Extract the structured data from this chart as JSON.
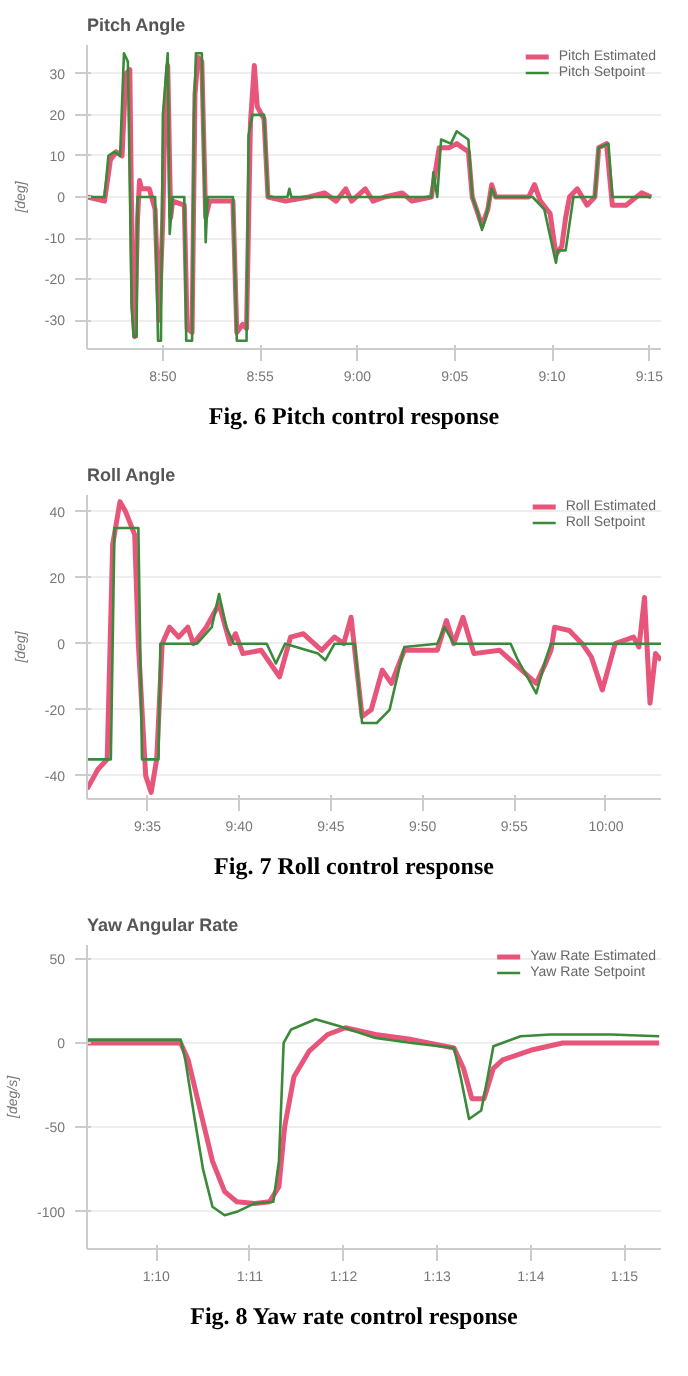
{
  "chart_data": [
    {
      "type": "line",
      "title": "Pitch Angle",
      "ylabel": "[deg]",
      "xlim": [
        526.1,
        555.6
      ],
      "ylim": [
        -37,
        37
      ],
      "xticks": [
        {
          "value": 530,
          "label": "8:50"
        },
        {
          "value": 535,
          "label": "8:55"
        },
        {
          "value": 540,
          "label": "9:00"
        },
        {
          "value": 545,
          "label": "9:05"
        },
        {
          "value": 550,
          "label": "9:10"
        },
        {
          "value": 555,
          "label": "9:15"
        }
      ],
      "yticks": [
        -30,
        -20,
        -10,
        0,
        10,
        20,
        30
      ],
      "grid": "y",
      "legend": "top right",
      "annotations": [
        "Fig. 6 Pitch control response"
      ],
      "series": [
        {
          "name": "Pitch Estimated",
          "color": "#e8557a",
          "x": [
            526.1,
            527.0,
            527.3,
            527.6,
            527.9,
            528.1,
            528.3,
            528.45,
            528.55,
            528.7,
            528.8,
            528.9,
            529.3,
            529.6,
            529.8,
            530.0,
            530.1,
            530.25,
            530.4,
            530.5,
            531.1,
            531.25,
            531.5,
            531.65,
            531.8,
            532.0,
            532.2,
            532.4,
            533.6,
            533.8,
            534.1,
            534.3,
            534.5,
            534.7,
            534.85,
            535.2,
            535.4,
            536.3,
            537.5,
            538.3,
            538.9,
            539.4,
            539.7,
            540.4,
            540.8,
            541.4,
            542.3,
            542.8,
            543.8,
            544.2,
            544.7,
            545.1,
            545.7,
            545.9,
            546.4,
            546.7,
            546.9,
            547.1,
            548.8,
            549.1,
            549.4,
            549.9,
            550.2,
            550.5,
            550.7,
            550.9,
            551.3,
            551.8,
            552.2,
            552.4,
            552.8,
            553.1,
            553.8,
            554.6,
            555.1
          ],
          "values": [
            0,
            -1,
            9,
            11,
            10,
            30,
            31,
            -26,
            -34,
            -5,
            4,
            2,
            2,
            -3,
            -30,
            -5,
            20,
            32,
            -5,
            -1,
            -2,
            -32,
            -33,
            25,
            34,
            33,
            -5,
            -1,
            -1,
            -33,
            -31,
            -32,
            18,
            32,
            22,
            19,
            0,
            -1,
            0,
            1,
            -1,
            2,
            -1,
            2,
            -1,
            0,
            1,
            -1,
            0,
            12,
            12,
            13,
            11,
            0,
            -7,
            -3,
            3,
            0,
            0,
            3,
            -1,
            -4,
            -14,
            -12,
            -5,
            0,
            2,
            -2,
            0,
            12,
            13,
            -2,
            -2,
            1,
            0
          ]
        },
        {
          "name": "Pitch Setpoint",
          "color": "#3a8a3a",
          "x": [
            526.1,
            527.0,
            527.2,
            527.5,
            527.8,
            528.0,
            528.2,
            528.4,
            528.5,
            528.65,
            528.7,
            529.6,
            529.75,
            529.9,
            530.0,
            530.25,
            530.35,
            530.5,
            531.1,
            531.2,
            531.5,
            531.6,
            531.7,
            532.0,
            532.2,
            532.3,
            533.6,
            533.8,
            534.3,
            534.4,
            534.6,
            535.2,
            535.4,
            536.4,
            536.5,
            536.6,
            543.8,
            543.9,
            544.1,
            544.3,
            544.8,
            545.1,
            545.7,
            545.9,
            546.2,
            546.4,
            546.6,
            546.9,
            547.1,
            549.0,
            549.6,
            550.2,
            550.3,
            550.7,
            551.1,
            552.2,
            552.4,
            552.9,
            553.1,
            555.1
          ],
          "values": [
            0,
            0,
            10,
            11,
            10,
            35,
            33,
            -27,
            -34,
            -34,
            0,
            0,
            -35,
            -35,
            20,
            35,
            -9,
            0,
            0,
            -35,
            -35,
            20,
            35,
            35,
            -11,
            0,
            0,
            -35,
            -35,
            15,
            20,
            20,
            0,
            0,
            2,
            0,
            0,
            6,
            0,
            14,
            13,
            16,
            14,
            0,
            -4,
            -8,
            -5,
            2,
            0,
            0,
            -3,
            -16,
            -13,
            -13,
            0,
            0,
            12,
            13,
            0,
            0
          ]
        }
      ]
    },
    {
      "type": "line",
      "title": "Roll Angle",
      "ylabel": "[deg]",
      "xlim": [
        571.7,
        603.0
      ],
      "ylim": [
        -47,
        45
      ],
      "xticks": [
        {
          "value": 575,
          "label": "9:35"
        },
        {
          "value": 580,
          "label": "9:40"
        },
        {
          "value": 585,
          "label": "9:45"
        },
        {
          "value": 590,
          "label": "9:50"
        },
        {
          "value": 595,
          "label": "9:55"
        },
        {
          "value": 600,
          "label": "10:00"
        }
      ],
      "yticks": [
        -40,
        -20,
        0,
        20,
        40
      ],
      "grid": "y",
      "legend": "top right",
      "annotations": [
        "Fig. 7 Roll control response"
      ],
      "series": [
        {
          "name": "Roll Estimated",
          "color": "#e8557a",
          "x": [
            571.7,
            572.3,
            572.8,
            573.1,
            573.5,
            573.8,
            574.3,
            574.5,
            574.9,
            575.2,
            575.5,
            575.8,
            576.2,
            576.7,
            577.2,
            577.5,
            578.2,
            578.9,
            579.5,
            579.8,
            580.2,
            581.2,
            582.2,
            582.8,
            583.5,
            584.5,
            585.2,
            585.7,
            586.1,
            586.7,
            587.2,
            587.8,
            588.3,
            589.0,
            590.8,
            591.3,
            591.7,
            592.2,
            592.8,
            594.2,
            594.8,
            595.8,
            596.2,
            596.7,
            597.0,
            597.2,
            598.0,
            598.7,
            599.2,
            599.8,
            600.5,
            601.5,
            601.8,
            602.1,
            602.4,
            602.7,
            603.0
          ],
          "values": [
            -44,
            -38,
            -35,
            30,
            43,
            40,
            33,
            0,
            -40,
            -45,
            -35,
            0,
            5,
            2,
            5,
            0,
            5,
            12,
            0,
            3,
            -3,
            -2,
            -10,
            2,
            3,
            -2,
            2,
            0,
            8,
            -22,
            -20,
            -8,
            -12,
            -2,
            -2,
            7,
            0,
            8,
            -3,
            -2,
            -5,
            -10,
            -12,
            -6,
            -2,
            5,
            4,
            0,
            -4,
            -14,
            0,
            2,
            -1,
            14,
            -18,
            -3,
            -5
          ]
        },
        {
          "name": "Roll Setpoint",
          "color": "#3a8a3a",
          "x": [
            571.7,
            573.0,
            573.2,
            574.5,
            574.7,
            575.6,
            575.7,
            577.7,
            578.5,
            578.9,
            579.3,
            579.7,
            581.5,
            582.0,
            582.5,
            584.3,
            584.7,
            585.2,
            586.3,
            586.7,
            587.5,
            588.2,
            588.7,
            589.0,
            590.8,
            591.2,
            591.7,
            594.8,
            595.2,
            595.7,
            596.2,
            596.7,
            597.0,
            603.0
          ],
          "values": [
            -35,
            -35,
            35,
            35,
            -35,
            -35,
            0,
            0,
            5,
            15,
            5,
            0,
            0,
            -6,
            0,
            -3,
            -5,
            0,
            0,
            -24,
            -24,
            -20,
            -8,
            -1,
            0,
            5,
            0,
            0,
            -5,
            -10,
            -15,
            -5,
            0,
            0
          ]
        }
      ]
    },
    {
      "type": "line",
      "title": "Yaw Angular Rate",
      "ylabel": "[deg/s]",
      "xlim": [
        69.26,
        75.39
      ],
      "ylim": [
        -122,
        58
      ],
      "xticks": [
        {
          "value": 70,
          "label": "1:10"
        },
        {
          "value": 71,
          "label": "1:11"
        },
        {
          "value": 72,
          "label": "1:12"
        },
        {
          "value": 73,
          "label": "1:13"
        },
        {
          "value": 74,
          "label": "1:14"
        },
        {
          "value": 75,
          "label": "1:15"
        }
      ],
      "yticks": [
        -100,
        -50,
        0,
        50
      ],
      "grid": "y",
      "legend": "top right",
      "annotations": [
        "Fig. 8 Yaw rate control response"
      ],
      "series": [
        {
          "name": "Yaw Rate Estimated",
          "color": "#e8557a",
          "x": [
            69.26,
            70.26,
            70.34,
            70.47,
            70.6,
            70.73,
            70.86,
            71.05,
            71.21,
            71.31,
            71.37,
            71.47,
            71.63,
            71.83,
            72.02,
            72.34,
            72.73,
            73.18,
            73.28,
            73.37,
            73.5,
            73.6,
            73.7,
            74.02,
            74.34,
            74.86,
            75.37
          ],
          "values": [
            0,
            0,
            -10,
            -40,
            -70,
            -88,
            -94,
            -95,
            -94,
            -85,
            -50,
            -20,
            -5,
            5,
            9,
            5,
            2,
            -3,
            -15,
            -33,
            -33,
            -15,
            -10,
            -4,
            0,
            0,
            0
          ]
        },
        {
          "name": "Yaw Rate Setpoint",
          "color": "#3a8a3a",
          "x": [
            69.26,
            70.26,
            70.31,
            70.41,
            70.5,
            70.6,
            70.73,
            70.86,
            71.05,
            71.25,
            71.31,
            71.36,
            71.44,
            71.7,
            71.95,
            72.34,
            72.73,
            73.18,
            73.25,
            73.34,
            73.47,
            73.54,
            73.6,
            73.89,
            74.21,
            74.86,
            75.37
          ],
          "values": [
            2,
            2,
            -10,
            -45,
            -75,
            -97,
            -102,
            -100,
            -95,
            -94,
            -70,
            0,
            8,
            14,
            10,
            3,
            0,
            -3,
            -20,
            -45,
            -40,
            -20,
            -2,
            4,
            5,
            5,
            4
          ]
        }
      ]
    }
  ]
}
